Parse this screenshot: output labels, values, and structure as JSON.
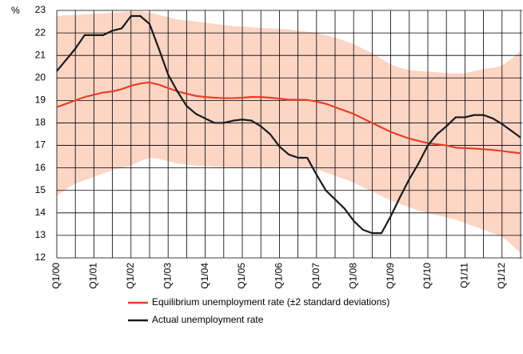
{
  "chart_data": {
    "type": "line",
    "ylabel": "%",
    "categories": [
      "Q1/00",
      null,
      null,
      null,
      "Q1/01",
      null,
      null,
      null,
      "Q1/02",
      null,
      null,
      null,
      "Q1/03",
      null,
      null,
      null,
      "Q1/04",
      null,
      null,
      null,
      "Q1/05",
      null,
      null,
      null,
      "Q1/06",
      null,
      null,
      null,
      "Q1/07",
      null,
      null,
      null,
      "Q1/08",
      null,
      null,
      null,
      "Q1/09",
      null,
      null,
      null,
      "Q1/10",
      null,
      null,
      null,
      "Q1/11",
      null,
      null,
      null,
      "Q1/12",
      null,
      null
    ],
    "ylim": [
      12,
      23
    ],
    "yticks": [
      12,
      13,
      14,
      15,
      16,
      17,
      18,
      19,
      20,
      21,
      22,
      23
    ],
    "grid": true,
    "band": {
      "color": "#fcd5c5",
      "upper": [
        22.75,
        22.78,
        22.8,
        22.82,
        22.85,
        22.87,
        22.9,
        22.92,
        22.95,
        22.95,
        22.9,
        22.8,
        22.7,
        22.6,
        22.55,
        22.5,
        22.45,
        22.4,
        22.35,
        22.3,
        22.28,
        22.25,
        22.22,
        22.2,
        22.18,
        22.15,
        22.1,
        22.05,
        22.0,
        21.9,
        21.8,
        21.65,
        21.5,
        21.3,
        21.1,
        20.85,
        20.6,
        20.45,
        20.35,
        20.3,
        20.28,
        20.25,
        20.22,
        20.2,
        20.22,
        20.3,
        20.4,
        20.45,
        20.55,
        20.85,
        21.2
      ],
      "lower": [
        14.75,
        15.05,
        15.3,
        15.45,
        15.6,
        15.75,
        15.9,
        16.0,
        16.1,
        16.3,
        16.45,
        16.4,
        16.3,
        16.2,
        16.15,
        16.1,
        16.08,
        16.05,
        16.03,
        16.0,
        16.0,
        16.0,
        16.0,
        16.0,
        16.0,
        16.0,
        16.0,
        16.0,
        15.95,
        15.8,
        15.65,
        15.5,
        15.35,
        15.15,
        14.95,
        14.75,
        14.55,
        14.4,
        14.25,
        14.1,
        14.0,
        13.9,
        13.8,
        13.7,
        13.55,
        13.4,
        13.25,
        13.1,
        12.95,
        12.6,
        12.2
      ]
    },
    "series": [
      {
        "name": "Equilibrium unemployment rate (±2 standard deviations)",
        "color": "#e8402a",
        "values": [
          18.7,
          18.85,
          19.0,
          19.15,
          19.25,
          19.35,
          19.4,
          19.5,
          19.65,
          19.75,
          19.8,
          19.7,
          19.55,
          19.4,
          19.3,
          19.2,
          19.15,
          19.12,
          19.1,
          19.1,
          19.12,
          19.15,
          19.15,
          19.12,
          19.08,
          19.03,
          19.03,
          19.02,
          18.95,
          18.85,
          18.7,
          18.55,
          18.4,
          18.2,
          18.0,
          17.8,
          17.6,
          17.45,
          17.3,
          17.2,
          17.1,
          17.05,
          17.0,
          16.9,
          16.88,
          16.86,
          16.83,
          16.8,
          16.75,
          16.7,
          16.65
        ]
      },
      {
        "name": "Actual unemployment rate",
        "color": "#1a1a1a",
        "values": [
          20.3,
          20.8,
          21.3,
          21.9,
          21.9,
          21.9,
          22.1,
          22.2,
          22.75,
          22.75,
          22.4,
          21.3,
          20.15,
          19.4,
          18.75,
          18.4,
          18.2,
          18.0,
          18.0,
          18.1,
          18.15,
          18.1,
          17.85,
          17.5,
          16.95,
          16.6,
          16.45,
          16.45,
          15.7,
          15.0,
          14.6,
          14.2,
          13.65,
          13.25,
          13.1,
          13.1,
          13.85,
          14.7,
          15.5,
          16.2,
          17.0,
          17.5,
          17.85,
          18.25,
          18.25,
          18.35,
          18.35,
          18.2,
          17.95,
          17.65,
          17.35
        ]
      }
    ]
  }
}
